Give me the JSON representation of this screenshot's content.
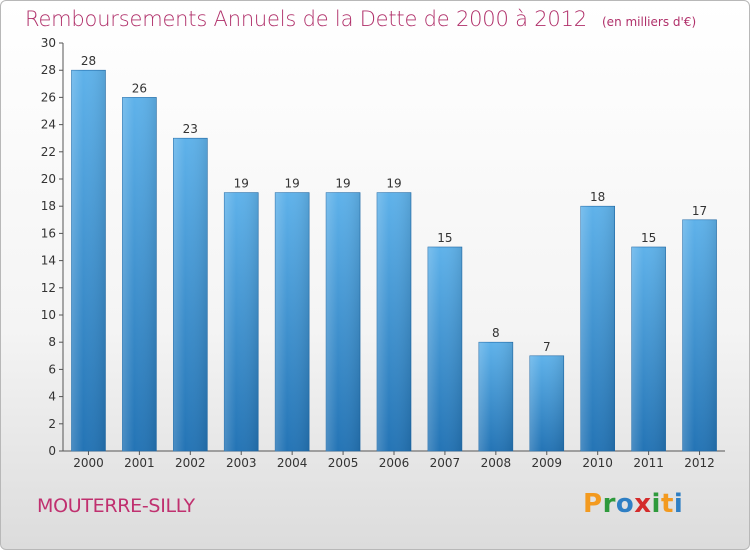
{
  "title": "Remboursements Annuels de la Dette de 2000 à 2012",
  "subtitle": "(en milliers d'€)",
  "commune": "MOUTERRE-SILLY",
  "logo": {
    "letters": [
      "P",
      "r",
      "o",
      "x",
      "i",
      "t",
      "i"
    ],
    "colors": [
      "#f39a1f",
      "#2e9a3c",
      "#2e7fc4",
      "#d42b2b",
      "#2e9a3c",
      "#f39a1f",
      "#2e7fc4"
    ]
  },
  "colors": {
    "title": "#b0306a",
    "bar_light": "#5aaee8",
    "bar_dark": "#2577b8"
  },
  "chart_data": {
    "type": "bar",
    "categories": [
      "2000",
      "2001",
      "2002",
      "2003",
      "2004",
      "2005",
      "2006",
      "2007",
      "2008",
      "2009",
      "2010",
      "2011",
      "2012"
    ],
    "values": [
      28,
      26,
      23,
      19,
      19,
      19,
      19,
      15,
      8,
      7,
      18,
      15,
      17
    ],
    "ylim": [
      0,
      30
    ],
    "yticks": [
      0,
      2,
      4,
      6,
      8,
      10,
      12,
      14,
      16,
      18,
      20,
      22,
      24,
      26,
      28,
      30
    ],
    "grid": false,
    "data_labels": true
  }
}
